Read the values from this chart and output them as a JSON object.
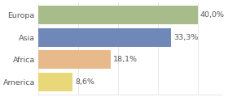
{
  "categories": [
    "Europa",
    "Asia",
    "Africa",
    "America"
  ],
  "values": [
    40.0,
    33.3,
    18.1,
    8.6
  ],
  "labels": [
    "40,0%",
    "33,3%",
    "18,1%",
    "8,6%"
  ],
  "bar_colors": [
    "#a8bb8a",
    "#6f88b8",
    "#e8b98a",
    "#e8d87a"
  ],
  "background_color": "#ffffff",
  "xlim_max": 46,
  "bar_height": 0.82,
  "label_fontsize": 6.8,
  "category_fontsize": 6.8,
  "text_color": "#555555",
  "grid_color": "#dddddd"
}
